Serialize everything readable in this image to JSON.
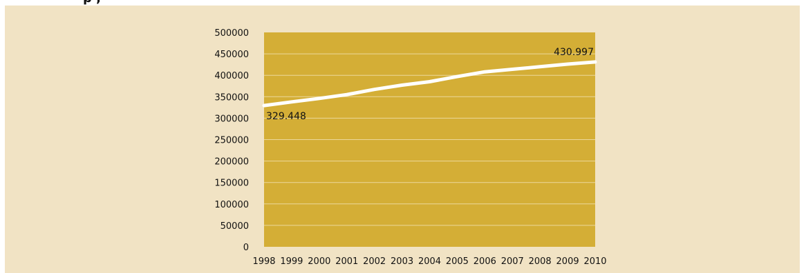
{
  "header": {
    "partial_title": "p                              ,"
  },
  "colors": {
    "panel_background": "#f1e3c4",
    "plot_background": "#d4ae36",
    "gridline": "#ecd89c",
    "line": "#ffffff",
    "text": "#111111"
  },
  "chart_data": {
    "type": "line",
    "title": "",
    "xlabel": "",
    "ylabel": "",
    "x": [
      "1998",
      "1999",
      "2000",
      "2001",
      "2002",
      "2003",
      "2004",
      "2005",
      "2006",
      "2007",
      "2008",
      "2009",
      "2010"
    ],
    "y_ticks": [
      "0",
      "50000",
      "100000",
      "150000",
      "200000",
      "250000",
      "300000",
      "350000",
      "400000",
      "450000",
      "500000"
    ],
    "ylim": [
      0,
      500000
    ],
    "grid": true,
    "legend": "none",
    "series": [
      {
        "values": [
          329448,
          338000,
          346000,
          355000,
          367000,
          377000,
          385000,
          397000,
          408000,
          414000,
          420000,
          426000,
          430997
        ]
      }
    ],
    "annotations": [
      {
        "text": "329.448",
        "x": "1998",
        "y": 329448
      },
      {
        "text": "430.997",
        "x": "2010",
        "y": 430997
      }
    ]
  }
}
